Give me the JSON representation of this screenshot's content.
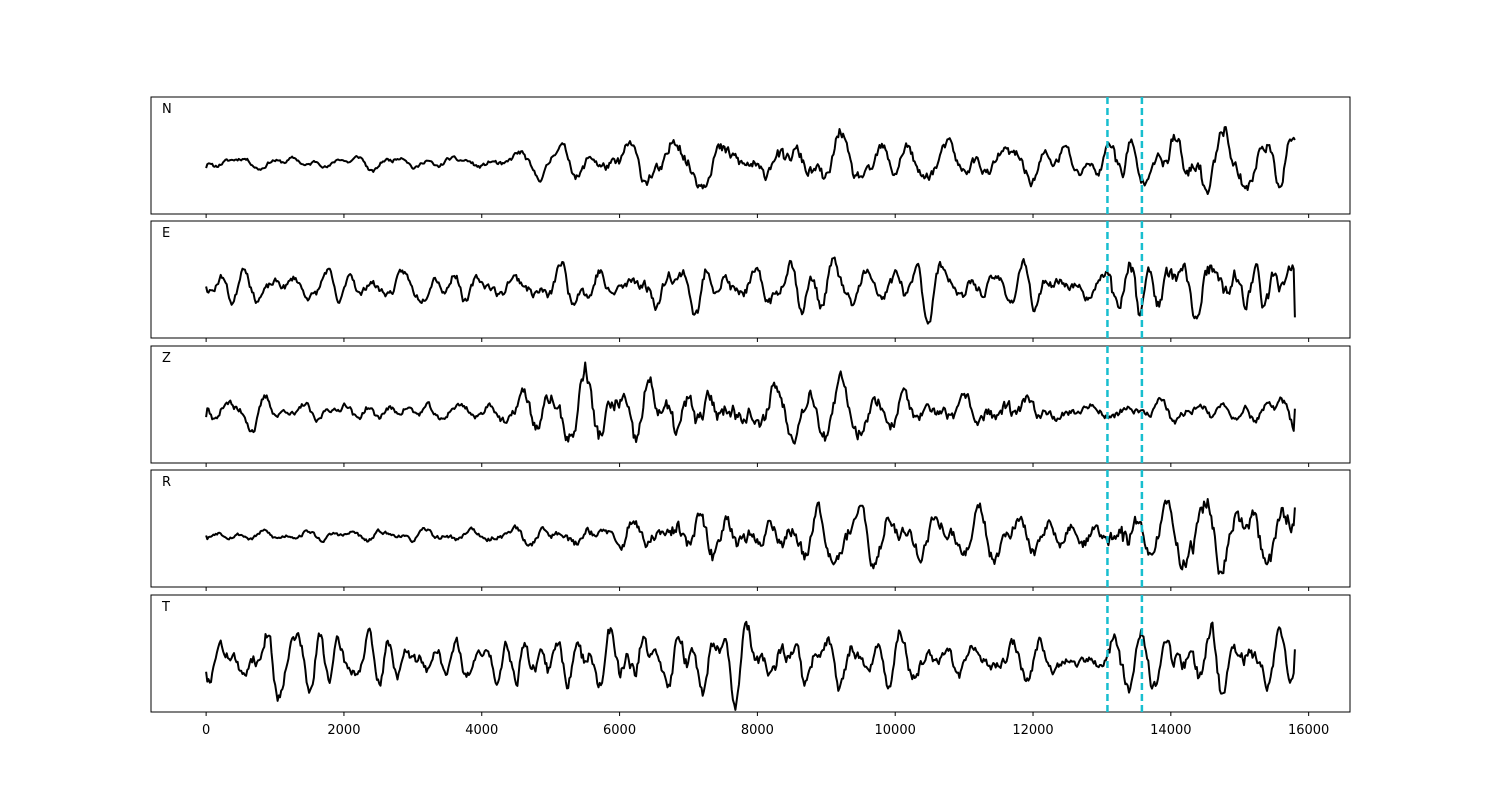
{
  "chart_data": {
    "type": "line",
    "title": "",
    "xlabel": "",
    "ylabel": "",
    "xlim": [
      -800,
      16600
    ],
    "x_ticks": [
      0,
      2000,
      4000,
      6000,
      8000,
      10000,
      12000,
      14000,
      16000
    ],
    "x_tick_labels": [
      "0",
      "2000",
      "4000",
      "6000",
      "8000",
      "10000",
      "12000",
      "14000",
      "16000"
    ],
    "x_range_of_data": [
      0,
      15800
    ],
    "line_color": "#000000",
    "marker_color": "#17becf",
    "vertical_markers": [
      13080,
      13580
    ],
    "panels": [
      {
        "label": "N",
        "amplitude_envelope": [
          [
            0,
            0.18
          ],
          [
            2000,
            0.18
          ],
          [
            4000,
            0.2
          ],
          [
            5500,
            0.45
          ],
          [
            6900,
            0.75
          ],
          [
            10000,
            0.55
          ],
          [
            12000,
            0.5
          ],
          [
            13000,
            0.45
          ],
          [
            13300,
            1.0
          ],
          [
            13600,
            0.5
          ],
          [
            14200,
            0.9
          ],
          [
            15800,
            0.7
          ]
        ],
        "seed": 11,
        "start": -0.1,
        "end": 0.4
      },
      {
        "label": "E",
        "amplitude_envelope": [
          [
            0,
            0.45
          ],
          [
            4000,
            0.45
          ],
          [
            6000,
            0.7
          ],
          [
            10000,
            0.7
          ],
          [
            13000,
            0.45
          ],
          [
            13150,
            1.0
          ],
          [
            13500,
            1.0
          ],
          [
            14500,
            1.0
          ],
          [
            15200,
            1.0
          ],
          [
            15800,
            0.8
          ]
        ],
        "seed": 23,
        "start": 0.0,
        "end": -0.55
      },
      {
        "label": "Z",
        "amplitude_envelope": [
          [
            0,
            0.25
          ],
          [
            600,
            0.5
          ],
          [
            1000,
            0.3
          ],
          [
            4000,
            0.3
          ],
          [
            5500,
            1.0
          ],
          [
            7000,
            0.9
          ],
          [
            8500,
            0.8
          ],
          [
            11000,
            0.5
          ],
          [
            11700,
            0.8
          ],
          [
            12000,
            0.5
          ],
          [
            13000,
            0.35
          ],
          [
            15800,
            0.4
          ]
        ],
        "seed": 37,
        "start": -0.1,
        "end": 0.05
      },
      {
        "label": "R",
        "amplitude_envelope": [
          [
            0,
            0.15
          ],
          [
            4000,
            0.18
          ],
          [
            6000,
            0.4
          ],
          [
            7000,
            0.7
          ],
          [
            10000,
            0.6
          ],
          [
            12000,
            0.55
          ],
          [
            13000,
            0.45
          ],
          [
            13300,
            1.0
          ],
          [
            13600,
            0.5
          ],
          [
            14200,
            0.9
          ],
          [
            15800,
            0.7
          ]
        ],
        "seed": 53,
        "start": 0.0,
        "end": 0.5
      },
      {
        "label": "T",
        "amplitude_envelope": [
          [
            0,
            0.5
          ],
          [
            1000,
            0.8
          ],
          [
            4000,
            0.5
          ],
          [
            4500,
            0.8
          ],
          [
            6500,
            0.95
          ],
          [
            10000,
            0.75
          ],
          [
            13000,
            0.5
          ],
          [
            13200,
            1.0
          ],
          [
            13600,
            1.0
          ],
          [
            14400,
            1.0
          ],
          [
            15200,
            0.9
          ],
          [
            15800,
            0.4
          ]
        ],
        "seed": 71,
        "start": -0.2,
        "end": 0.2
      }
    ]
  }
}
